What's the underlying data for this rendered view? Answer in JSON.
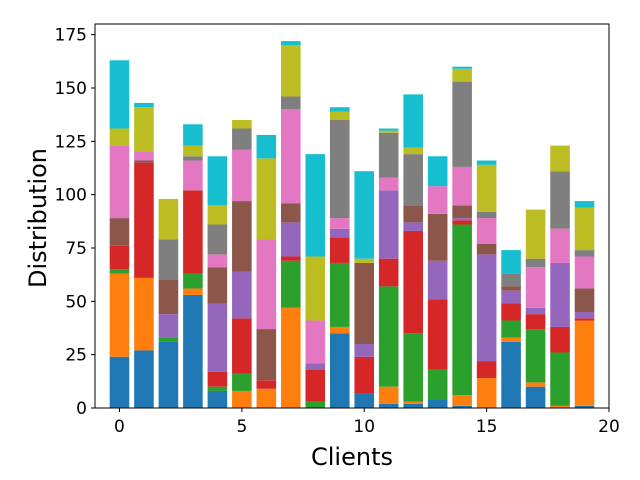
{
  "chart_data": {
    "type": "bar",
    "stacked": true,
    "xlabel": "Clients",
    "ylabel": "Distribution",
    "xlim": [
      -1,
      20
    ],
    "ylim": [
      0,
      180
    ],
    "x_ticks": [
      0,
      5,
      10,
      15,
      20
    ],
    "y_ticks": [
      0,
      25,
      50,
      75,
      100,
      125,
      150,
      175
    ],
    "grid": false,
    "categories": [
      0,
      1,
      2,
      3,
      4,
      5,
      6,
      7,
      8,
      9,
      10,
      11,
      12,
      13,
      14,
      15,
      16,
      17,
      18,
      19
    ],
    "series": [
      {
        "color": "#1f77b4",
        "values": [
          24,
          27,
          31,
          53,
          8,
          0,
          0,
          0,
          0,
          35,
          7,
          2,
          2,
          4,
          1,
          0,
          31,
          10,
          0,
          1
        ]
      },
      {
        "color": "#ff7f0e",
        "values": [
          39,
          34,
          0,
          3,
          0,
          8,
          9,
          47,
          0,
          3,
          0,
          8,
          1,
          0,
          5,
          14,
          2,
          2,
          1,
          40
        ]
      },
      {
        "color": "#2ca02c",
        "values": [
          2,
          0,
          2,
          7,
          2,
          8,
          0,
          22,
          3,
          30,
          0,
          47,
          32,
          14,
          80,
          0,
          8,
          25,
          25,
          0
        ]
      },
      {
        "color": "#d62728",
        "values": [
          11,
          54,
          0,
          39,
          7,
          26,
          4,
          2,
          15,
          12,
          17,
          13,
          48,
          33,
          2,
          8,
          8,
          7,
          12,
          1
        ]
      },
      {
        "color": "#9467bd",
        "values": [
          0,
          0,
          11,
          0,
          32,
          22,
          0,
          16,
          3,
          4,
          6,
          32,
          4,
          18,
          1,
          50,
          6,
          3,
          30,
          3
        ]
      },
      {
        "color": "#8c564b",
        "values": [
          13,
          1,
          16,
          0,
          17,
          33,
          24,
          9,
          0,
          0,
          38,
          0,
          8,
          22,
          6,
          5,
          2,
          0,
          0,
          11
        ]
      },
      {
        "color": "#e377c2",
        "values": [
          34,
          4,
          0,
          14,
          6,
          24,
          42,
          44,
          20,
          5,
          0,
          6,
          0,
          13,
          18,
          12,
          0,
          19,
          16,
          15
        ]
      },
      {
        "color": "#7f7f7f",
        "values": [
          0,
          0,
          19,
          2,
          14,
          10,
          0,
          6,
          0,
          46,
          0,
          21,
          24,
          0,
          40,
          3,
          6,
          4,
          27,
          3
        ]
      },
      {
        "color": "#bcbd22",
        "values": [
          8,
          21,
          19,
          5,
          9,
          4,
          38,
          24,
          30,
          4,
          2,
          1,
          3,
          0,
          6,
          22,
          0,
          23,
          12,
          20
        ]
      },
      {
        "color": "#17becf",
        "values": [
          32,
          2,
          0,
          10,
          23,
          0,
          11,
          2,
          48,
          2,
          41,
          1,
          25,
          14,
          1,
          2,
          11,
          0,
          0,
          3
        ]
      }
    ]
  }
}
